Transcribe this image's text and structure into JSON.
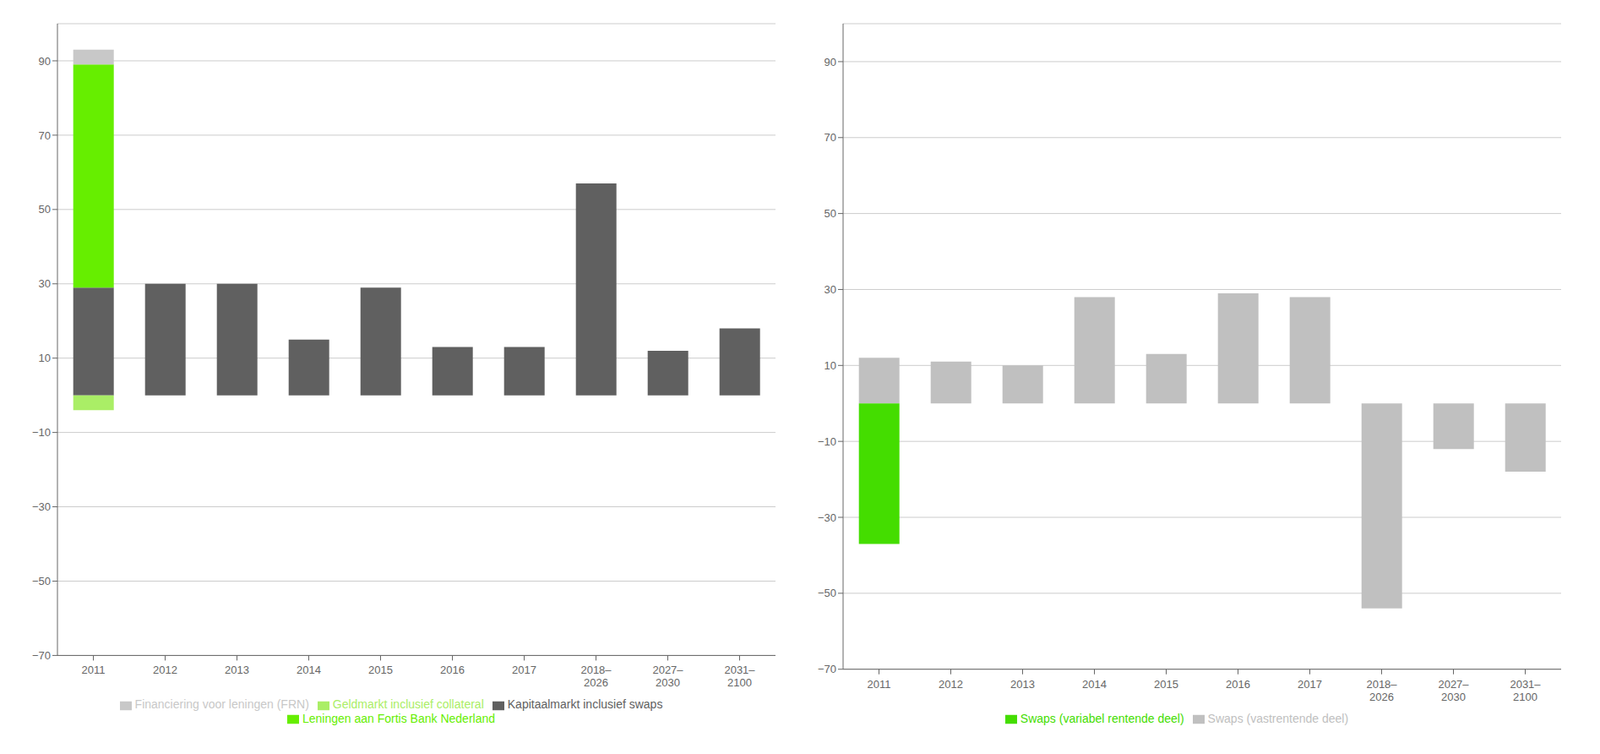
{
  "chart_data": [
    {
      "type": "bar",
      "stacked": true,
      "grid": true,
      "legend": "bottom",
      "categories": [
        "2011",
        "2012",
        "2013",
        "2014",
        "2015",
        "2016",
        "2017",
        "2018–\n2026",
        "2027–\n2030",
        "2031–\n2100"
      ],
      "series": [
        {
          "name": "Kapitaalmarkt inclusief swaps",
          "color": "#606060",
          "values": [
            29,
            30,
            30,
            15,
            29,
            13,
            13,
            57,
            12,
            18
          ]
        },
        {
          "name": "Leningen aan Fortis Bank Nederland",
          "color": "#66ee00",
          "values": [
            60,
            0,
            0,
            0,
            0,
            0,
            0,
            0,
            0,
            0
          ]
        },
        {
          "name": "Financiering voor leningen (FRN)",
          "color": "#c8c8c8",
          "values": [
            4,
            0,
            0,
            0,
            0,
            0,
            0,
            0,
            0,
            0
          ]
        },
        {
          "name": "Geldmarkt inclusief collateral",
          "color": "#aaee66",
          "values": [
            -4,
            0,
            0,
            0,
            0,
            0,
            0,
            0,
            0,
            0
          ]
        }
      ],
      "ylim": [
        -70,
        100
      ],
      "yticks": [
        {
          "value": -70,
          "label": "−70"
        },
        {
          "value": -50,
          "label": "−50"
        },
        {
          "value": -30,
          "label": "−30"
        },
        {
          "value": -10,
          "label": "−10"
        },
        10,
        30,
        50,
        70,
        90
      ]
    },
    {
      "type": "bar",
      "stacked": true,
      "grid": true,
      "legend": "bottom",
      "categories": [
        "2011",
        "2012",
        "2013",
        "2014",
        "2015",
        "2016",
        "2017",
        "2018–\n2026",
        "2027–\n2030",
        "2031–\n2100"
      ],
      "series": [
        {
          "name": "Swaps (vastrentende deel)",
          "color": "#c0c0c0",
          "values": [
            12,
            11,
            10,
            28,
            13,
            29,
            28,
            -54,
            -12,
            -18
          ]
        },
        {
          "name": "Swaps (variabel rentende deel)",
          "color": "#44dd00",
          "values": [
            -37,
            0,
            0,
            0,
            0,
            0,
            0,
            0,
            0,
            0
          ]
        }
      ],
      "ylim": [
        -70,
        100
      ],
      "yticks": [
        {
          "value": -70,
          "label": "−70"
        },
        {
          "value": -50,
          "label": "−50"
        },
        {
          "value": -30,
          "label": "−30"
        },
        {
          "value": -10,
          "label": "−10"
        },
        10,
        30,
        50,
        70,
        90
      ]
    }
  ]
}
